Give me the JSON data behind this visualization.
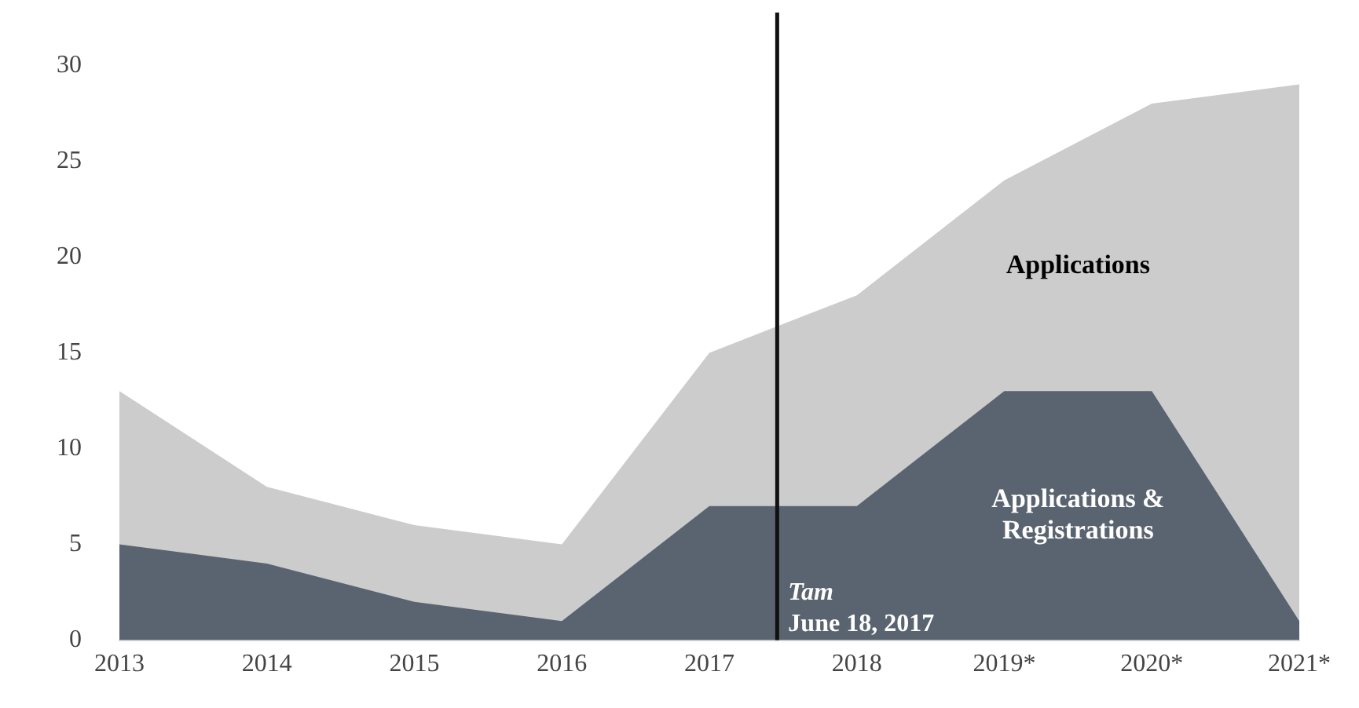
{
  "chart_data": {
    "type": "area",
    "x": [
      2013,
      2014,
      2015,
      2016,
      2017,
      2018,
      2019,
      2020,
      2021
    ],
    "series": [
      {
        "name": "Applications",
        "color": "#cccccc",
        "values": [
          13,
          8,
          6,
          5,
          15,
          18,
          24,
          28,
          29
        ]
      },
      {
        "name": "Applications & Registrations",
        "color": "#5a6470",
        "values": [
          5,
          4,
          2,
          1,
          7,
          7,
          13,
          13,
          1
        ]
      }
    ],
    "xlim": [
      2013,
      2021
    ],
    "xticks": [
      2013,
      2014,
      2015,
      2016,
      2017,
      2018,
      {
        "value": 2019,
        "label": "2019*"
      },
      {
        "value": 2020,
        "label": "2020*"
      },
      {
        "value": 2021,
        "label": "2021*"
      }
    ],
    "ylim": [
      0,
      30
    ],
    "yticks": [
      0,
      5,
      10,
      15,
      20,
      25,
      30
    ],
    "ref_lines": [
      {
        "axis": "x",
        "value": 2017.46,
        "label": "Tam June 18, 2017",
        "color": "#111111"
      }
    ],
    "grid": false,
    "legend": false
  }
}
